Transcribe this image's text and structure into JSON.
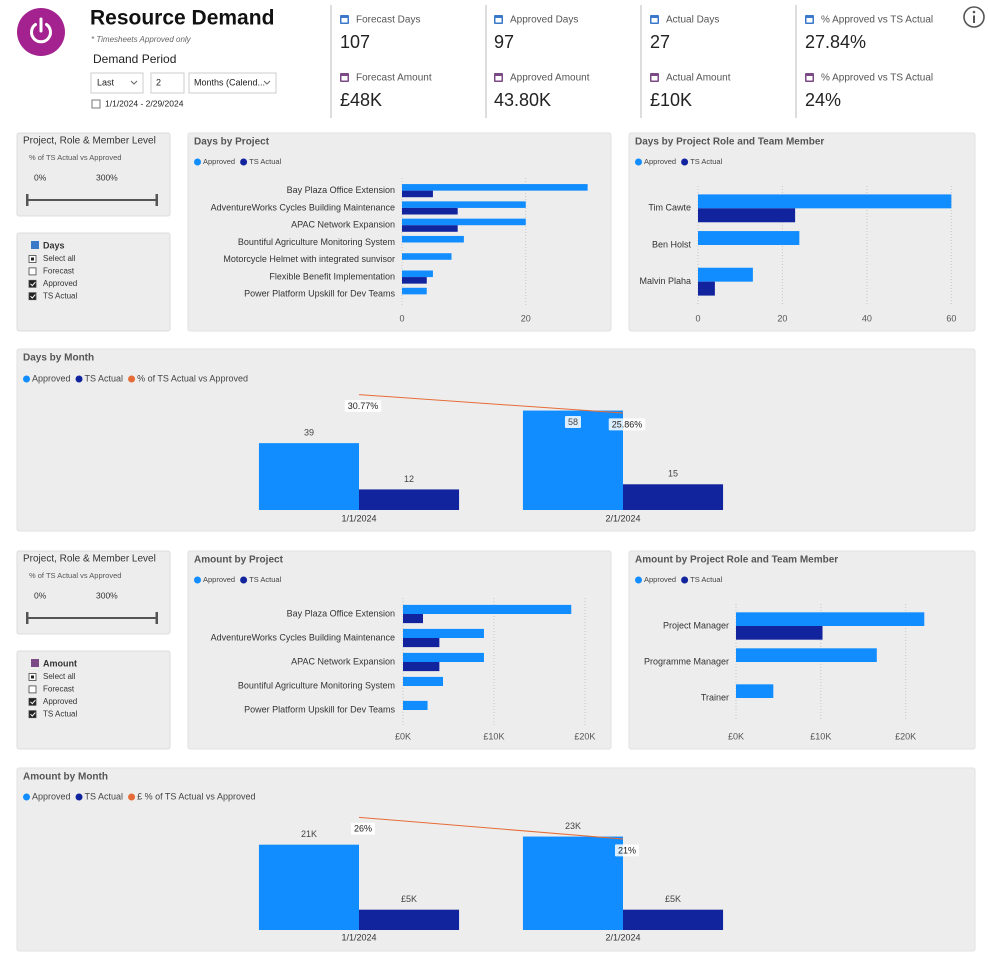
{
  "header": {
    "title": "Resource Demand",
    "subtitle": "* Timesheets Approved only",
    "period_label": "Demand Period",
    "period_unit": "Last",
    "period_count": 2,
    "period_type": "Months (Calend...",
    "date_range": "1/1/2024 - 2/29/2024"
  },
  "kpis": [
    {
      "label": "Forecast Days",
      "value": 107
    },
    {
      "label": "Approved Days",
      "value": 97
    },
    {
      "label": "Actual Days",
      "value": 27
    },
    {
      "label": "% Approved vs TS Actual",
      "value": "27.84%"
    },
    {
      "label": "Forecast Amount",
      "value": "£48K"
    },
    {
      "label": "Approved Amount",
      "value": "43.80K"
    },
    {
      "label": "Actual Amount",
      "value": "£10K"
    },
    {
      "label": "% Approved vs TS Actual",
      "value": "24%"
    }
  ],
  "slicers": [
    {
      "title": "Project, Role & Member Level",
      "subtitle": "% of TS Actual vs Approved",
      "min": "0%",
      "max": "300%"
    },
    {
      "title": "Days",
      "items": [
        {
          "label": "Select all",
          "state": "partial"
        },
        {
          "label": "Forecast",
          "state": "unchecked"
        },
        {
          "label": "Approved",
          "state": "checked"
        },
        {
          "label": "TS Actual",
          "state": "checked"
        }
      ]
    },
    {
      "title": "Project, Role & Member Level",
      "subtitle": "% of TS Actual vs Approved",
      "min": "0%",
      "max": "300%"
    },
    {
      "title": "Amount",
      "items": [
        {
          "label": "Select all",
          "state": "partial"
        },
        {
          "label": "Forecast",
          "state": "unchecked"
        },
        {
          "label": "Approved",
          "state": "checked"
        },
        {
          "label": "TS Actual",
          "state": "checked"
        }
      ]
    }
  ],
  "chart_data": [
    {
      "type": "hbar",
      "title": "Days by Project",
      "categories": [
        "Bay Plaza Office Extension",
        "AdventureWorks Cycles Building Maintenance",
        "APAC Network Expansion",
        "Bountiful Agriculture Monitoring System",
        "Motorcycle Helmet with integrated sunvisor",
        "Flexible Benefit Implementation",
        "Power Platform Upskill for Dev Teams"
      ],
      "series": [
        {
          "name": "Approved",
          "color": "#118DFF",
          "values": [
            30,
            20,
            20,
            10,
            8,
            5,
            4
          ]
        },
        {
          "name": "TS Actual",
          "color": "#12239E",
          "values": [
            5,
            9,
            9,
            null,
            null,
            4,
            null
          ]
        }
      ],
      "xlim": [
        0,
        32
      ],
      "xticks": [
        0,
        20
      ],
      "grid": true
    },
    {
      "type": "hbar",
      "title": "Days by Project Role and Team Member",
      "categories": [
        "Tim Cawte",
        "Ben Holst",
        "Malvin Plaha"
      ],
      "series": [
        {
          "name": "Approved",
          "color": "#118DFF",
          "values": [
            60,
            24,
            13
          ]
        },
        {
          "name": "TS Actual",
          "color": "#12239E",
          "values": [
            23,
            null,
            4
          ]
        }
      ],
      "xlim": [
        0,
        63
      ],
      "xticks": [
        0,
        20,
        40,
        60
      ],
      "grid": true
    },
    {
      "type": "combo",
      "title": "Days by Month",
      "categories": [
        "1/1/2024",
        "2/1/2024"
      ],
      "series": [
        {
          "name": "Approved",
          "color": "#118DFF",
          "values": [
            39,
            58
          ]
        },
        {
          "name": "TS Actual",
          "color": "#12239E",
          "values": [
            12,
            15
          ]
        },
        {
          "name": "% of TS Actual vs Approved",
          "color": "#E66C37",
          "type": "line",
          "axis": "y2",
          "values": [
            30.77,
            25.86
          ],
          "value_labels": [
            "30.77%",
            "25.86%"
          ]
        }
      ],
      "ylim": [
        0,
        70
      ],
      "y2lim": [
        0,
        32
      ]
    },
    {
      "type": "hbar",
      "title": "Amount by Project",
      "categories": [
        "Bay Plaza Office Extension",
        "AdventureWorks Cycles Building Maintenance",
        "APAC Network Expansion",
        "Bountiful Agriculture Monitoring System",
        "Power Platform Upskill for Dev Teams"
      ],
      "series": [
        {
          "name": "Approved",
          "color": "#118DFF",
          "values": [
            18500,
            8900,
            8900,
            4400,
            2700
          ]
        },
        {
          "name": "TS Actual",
          "color": "#12239E",
          "values": [
            2200,
            4000,
            4000,
            null,
            null
          ]
        }
      ],
      "xlim": [
        0,
        21000
      ],
      "xticks": [
        {
          "value": 0,
          "label": "£0K"
        },
        {
          "value": 10000,
          "label": "£10K"
        },
        {
          "value": 20000,
          "label": "£20K"
        }
      ],
      "grid": true
    },
    {
      "type": "hbar",
      "title": "Amount by Project Role and Team Member",
      "categories": [
        "Project Manager",
        "Programme Manager",
        "Trainer"
      ],
      "series": [
        {
          "name": "Approved",
          "color": "#118DFF",
          "values": [
            22200,
            16600,
            4400
          ]
        },
        {
          "name": "TS Actual",
          "color": "#12239E",
          "values": [
            10200,
            null,
            null
          ]
        }
      ],
      "xlim": [
        0,
        27000
      ],
      "xticks": [
        {
          "value": 0,
          "label": "£0K"
        },
        {
          "value": 10000,
          "label": "£10K"
        },
        {
          "value": 20000,
          "label": "£20K"
        }
      ],
      "grid": true
    },
    {
      "type": "combo",
      "title": "Amount by Month",
      "categories": [
        "1/1/2024",
        "2/1/2024"
      ],
      "series": [
        {
          "name": "Approved",
          "color": "#118DFF",
          "values": [
            21000,
            23000
          ],
          "value_labels": [
            "21K",
            "23K"
          ]
        },
        {
          "name": "TS Actual",
          "color": "#12239E",
          "values": [
            5000,
            5000
          ],
          "value_labels": [
            "£5K",
            "£5K"
          ]
        },
        {
          "name": "£ % of TS Actual vs Approved",
          "color": "#E66C37",
          "type": "line",
          "axis": "y2",
          "values": [
            26,
            21
          ],
          "value_labels": [
            "26%",
            "21%"
          ]
        }
      ],
      "ylim": [
        0,
        32000
      ],
      "y2lim": [
        0,
        30
      ]
    }
  ]
}
